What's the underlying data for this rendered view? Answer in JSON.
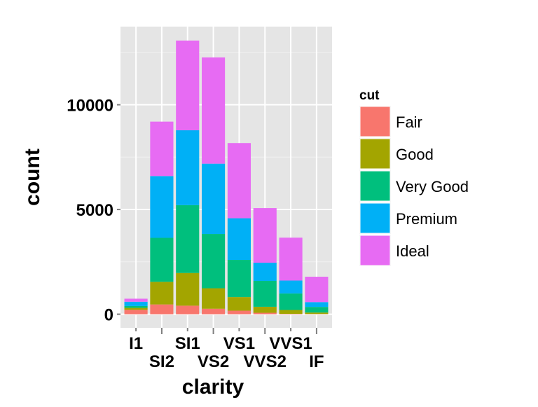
{
  "chart_data": {
    "type": "bar",
    "stacked": true,
    "xlabel": "clarity",
    "ylabel": "count",
    "categories": [
      "I1",
      "SI2",
      "SI1",
      "VS2",
      "VS1",
      "VVS2",
      "VVS1",
      "IF"
    ],
    "y_ticks": [
      0,
      5000,
      10000
    ],
    "ylim": [
      -650,
      13730
    ],
    "grid": true,
    "legend": {
      "title": "cut",
      "position": "right"
    },
    "series": [
      {
        "name": "Fair",
        "color": "#F8766D",
        "values": [
          210,
          466,
          408,
          261,
          170,
          69,
          17,
          9
        ]
      },
      {
        "name": "Good",
        "color": "#A3A500",
        "values": [
          96,
          1081,
          1560,
          978,
          648,
          286,
          186,
          71
        ]
      },
      {
        "name": "Very Good",
        "color": "#00BF7D",
        "values": [
          84,
          2100,
          3240,
          2591,
          1775,
          1235,
          789,
          268
        ]
      },
      {
        "name": "Premium",
        "color": "#00B0F6",
        "values": [
          205,
          2949,
          3575,
          3357,
          1989,
          870,
          616,
          230
        ]
      },
      {
        "name": "Ideal",
        "color": "#E76BF3",
        "values": [
          146,
          2598,
          4282,
          5071,
          3589,
          2606,
          2047,
          1212
        ]
      }
    ]
  }
}
